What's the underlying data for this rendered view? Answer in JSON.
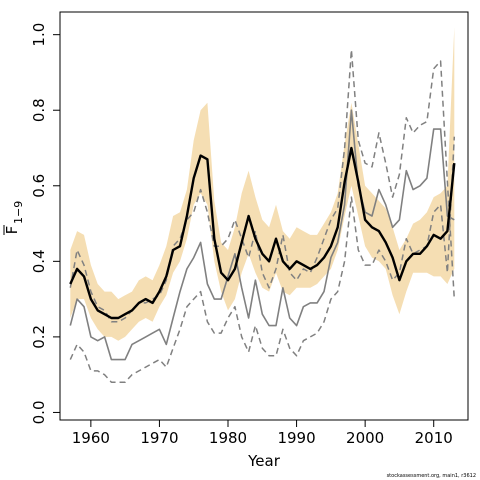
{
  "chart_data": {
    "type": "line",
    "title": "",
    "xlabel": "Year",
    "ylabel_main": "F",
    "ylabel_sub": "1−9",
    "xlim": [
      1955.5,
      2015
    ],
    "ylim": [
      -0.02,
      1.06
    ],
    "xticks": [
      1960,
      1970,
      1980,
      1990,
      2000,
      2010
    ],
    "yticks": [
      0.0,
      0.2,
      0.4,
      0.6,
      0.8,
      1.0
    ],
    "ytick_labels": [
      "0.0",
      "0.2",
      "0.4",
      "0.6",
      "0.8",
      "1.0"
    ],
    "grid": false,
    "legend": "none",
    "credit": "stockassessment.org, main1, r3612",
    "colors": {
      "band": "#f5deb3",
      "estimate": "#000000",
      "gray_solid": "#808080",
      "gray_dashed": "#808080"
    },
    "x": [
      1957,
      1958,
      1959,
      1960,
      1961,
      1962,
      1963,
      1964,
      1965,
      1966,
      1967,
      1968,
      1969,
      1970,
      1971,
      1972,
      1973,
      1974,
      1975,
      1976,
      1977,
      1978,
      1979,
      1980,
      1981,
      1982,
      1983,
      1984,
      1985,
      1986,
      1987,
      1988,
      1989,
      1990,
      1991,
      1992,
      1993,
      1994,
      1995,
      1996,
      1997,
      1998,
      1999,
      2000,
      2001,
      2002,
      2003,
      2004,
      2005,
      2006,
      2007,
      2008,
      2009,
      2010,
      2011,
      2012,
      2013
    ],
    "series": [
      {
        "role": "band_upper",
        "values": [
          0.43,
          0.48,
          0.47,
          0.39,
          0.34,
          0.32,
          0.32,
          0.3,
          0.31,
          0.32,
          0.35,
          0.36,
          0.35,
          0.39,
          0.44,
          0.52,
          0.53,
          0.59,
          0.72,
          0.8,
          0.82,
          0.56,
          0.45,
          0.43,
          0.49,
          0.58,
          0.64,
          0.57,
          0.51,
          0.49,
          0.55,
          0.48,
          0.46,
          0.49,
          0.48,
          0.47,
          0.47,
          0.5,
          0.53,
          0.58,
          0.71,
          0.82,
          0.71,
          0.6,
          0.58,
          0.56,
          0.54,
          0.49,
          0.43,
          0.46,
          0.5,
          0.51,
          0.53,
          0.57,
          0.58,
          0.6,
          1.02
        ]
      },
      {
        "role": "band_lower",
        "values": [
          0.25,
          0.3,
          0.3,
          0.25,
          0.22,
          0.2,
          0.2,
          0.19,
          0.2,
          0.22,
          0.24,
          0.25,
          0.24,
          0.28,
          0.31,
          0.37,
          0.4,
          0.46,
          0.55,
          0.58,
          0.55,
          0.4,
          0.32,
          0.27,
          0.3,
          0.37,
          0.42,
          0.37,
          0.33,
          0.32,
          0.37,
          0.32,
          0.31,
          0.33,
          0.33,
          0.33,
          0.34,
          0.36,
          0.38,
          0.43,
          0.52,
          0.6,
          0.52,
          0.44,
          0.41,
          0.4,
          0.38,
          0.31,
          0.26,
          0.32,
          0.37,
          0.37,
          0.37,
          0.36,
          0.36,
          0.34,
          0.38
        ]
      },
      {
        "role": "estimate",
        "values": [
          0.34,
          0.38,
          0.36,
          0.3,
          0.27,
          0.26,
          0.25,
          0.25,
          0.26,
          0.27,
          0.29,
          0.3,
          0.29,
          0.32,
          0.36,
          0.43,
          0.44,
          0.52,
          0.62,
          0.68,
          0.67,
          0.46,
          0.37,
          0.35,
          0.38,
          0.45,
          0.52,
          0.46,
          0.42,
          0.4,
          0.46,
          0.4,
          0.38,
          0.4,
          0.39,
          0.38,
          0.39,
          0.41,
          0.44,
          0.49,
          0.61,
          0.7,
          0.61,
          0.51,
          0.49,
          0.48,
          0.45,
          0.41,
          0.35,
          0.4,
          0.42,
          0.42,
          0.44,
          0.47,
          0.46,
          0.48,
          0.66
        ]
      },
      {
        "role": "gray_solid_upper",
        "values": [
          0.23,
          0.3,
          0.28,
          0.2,
          0.19,
          0.2,
          0.14,
          0.14,
          0.14,
          0.18,
          0.19,
          0.2,
          0.21,
          0.22,
          0.18,
          0.25,
          0.32,
          0.38,
          0.41,
          0.45,
          0.34,
          0.3,
          0.3,
          0.36,
          0.42,
          0.33,
          0.25,
          0.35,
          0.26,
          0.23,
          0.23,
          0.33,
          0.25,
          0.23,
          0.28,
          0.29,
          0.29,
          0.32,
          0.41,
          0.45,
          0.55,
          0.8,
          0.6,
          0.53,
          0.52,
          0.59,
          0.55,
          0.49,
          0.51,
          0.64,
          0.59,
          0.6,
          0.62,
          0.75,
          0.75,
          0.52,
          0.51
        ]
      },
      {
        "role": "gray_solid_lower",
        "values": [
          0.23,
          0.3,
          0.28,
          0.2,
          0.19,
          0.2,
          0.14,
          0.14,
          0.14,
          0.18,
          0.19,
          0.2,
          0.21,
          0.22,
          0.18,
          0.25,
          0.32,
          0.38,
          0.41,
          0.45,
          0.34,
          0.3,
          0.3,
          0.36,
          0.42,
          0.33,
          0.25,
          0.35,
          0.26,
          0.23,
          0.23,
          0.33,
          0.25,
          0.23,
          0.28,
          0.29,
          0.29,
          0.32,
          0.41,
          0.45,
          0.55,
          0.8,
          0.6,
          0.53,
          0.52,
          0.59,
          0.55,
          0.49,
          0.51,
          0.64,
          0.59,
          0.6,
          0.62,
          0.75,
          0.75,
          0.52,
          0.51
        ]
      },
      {
        "role": "gray_dashed_upper",
        "values": [
          0.33,
          0.43,
          0.39,
          0.32,
          0.28,
          0.27,
          0.24,
          0.24,
          0.25,
          0.27,
          0.29,
          0.29,
          0.3,
          0.31,
          0.35,
          0.44,
          0.46,
          0.51,
          0.53,
          0.59,
          0.53,
          0.44,
          0.44,
          0.46,
          0.51,
          0.46,
          0.41,
          0.48,
          0.37,
          0.33,
          0.38,
          0.47,
          0.37,
          0.35,
          0.38,
          0.37,
          0.41,
          0.46,
          0.51,
          0.54,
          0.7,
          0.96,
          0.72,
          0.66,
          0.65,
          0.74,
          0.66,
          0.57,
          0.63,
          0.78,
          0.74,
          0.76,
          0.77,
          0.91,
          0.93,
          0.61,
          0.3
        ]
      },
      {
        "role": "gray_dashed_lower",
        "values": [
          0.14,
          0.18,
          0.16,
          0.11,
          0.11,
          0.1,
          0.08,
          0.08,
          0.08,
          0.1,
          0.11,
          0.12,
          0.13,
          0.14,
          0.12,
          0.17,
          0.22,
          0.28,
          0.3,
          0.32,
          0.24,
          0.21,
          0.21,
          0.25,
          0.28,
          0.2,
          0.16,
          0.23,
          0.17,
          0.15,
          0.15,
          0.22,
          0.17,
          0.15,
          0.19,
          0.2,
          0.21,
          0.24,
          0.3,
          0.32,
          0.4,
          0.57,
          0.43,
          0.39,
          0.39,
          0.43,
          0.4,
          0.35,
          0.37,
          0.46,
          0.42,
          0.43,
          0.44,
          0.53,
          0.55,
          0.37,
          0.73
        ]
      }
    ]
  }
}
